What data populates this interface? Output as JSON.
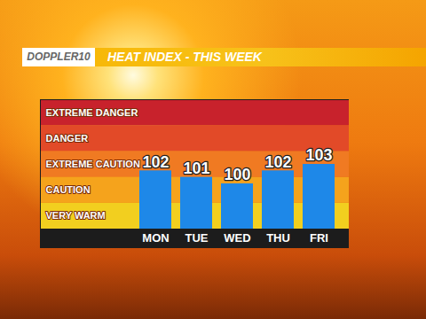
{
  "chart_data": {
    "type": "bar",
    "title": "HEAT INDEX - THIS WEEK",
    "annotations": [
      "DOPPLER10"
    ],
    "categories": [
      "MON",
      "TUE",
      "WED",
      "THU",
      "FRI"
    ],
    "values": [
      102,
      101,
      100,
      102,
      103
    ],
    "color": "#1e88e8",
    "ylim": [
      93,
      113
    ],
    "yticks": [
      {
        "value": 95,
        "label": "VERY WARM"
      },
      {
        "value": 99,
        "label": "CAUTION"
      },
      {
        "value": 103,
        "label": "EXTREME CAUTION"
      },
      {
        "value": 107,
        "label": "DANGER"
      },
      {
        "value": 111,
        "label": "EXTREME DANGER"
      }
    ],
    "bands": [
      {
        "from": 93,
        "to": 97,
        "color": "#f2cf1f"
      },
      {
        "from": 97,
        "to": 101,
        "color": "#f5a31c"
      },
      {
        "from": 101,
        "to": 105,
        "color": "#f07a22"
      },
      {
        "from": 105,
        "to": 109,
        "color": "#e24a28"
      },
      {
        "from": 109,
        "to": 113,
        "color": "#c8222c"
      }
    ],
    "data_labels": true,
    "grid": false
  }
}
